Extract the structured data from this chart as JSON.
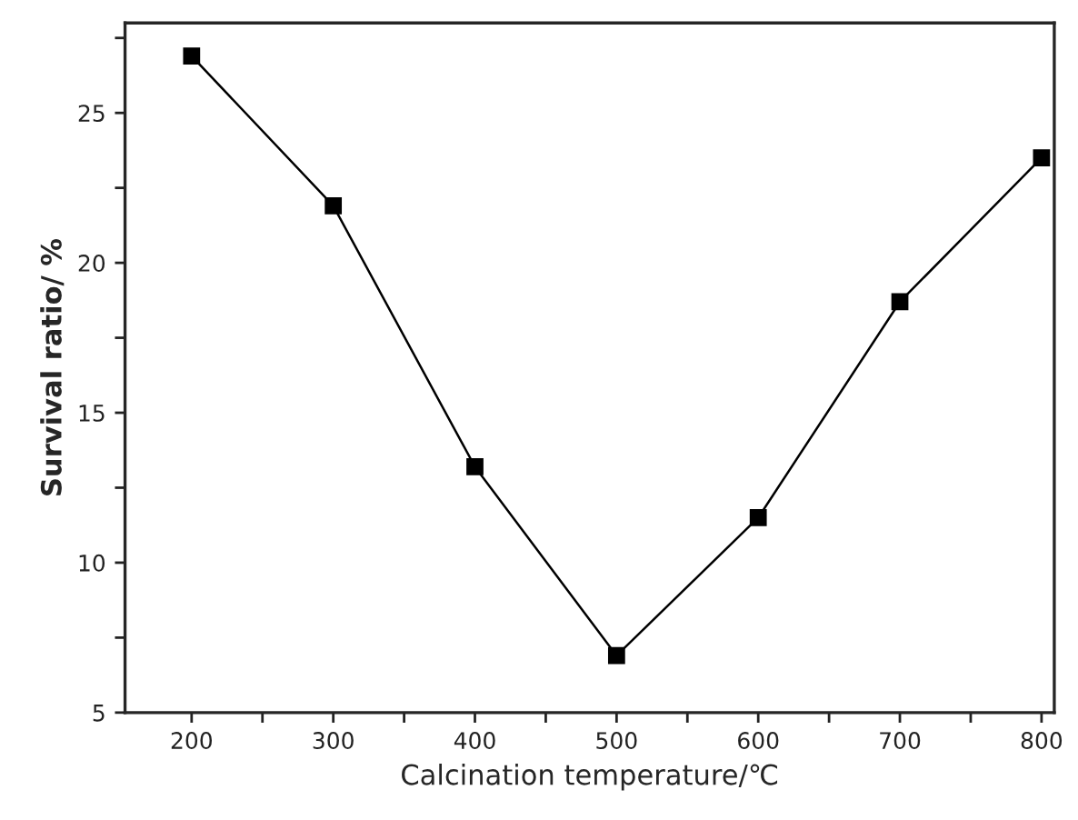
{
  "chart_data": {
    "type": "line",
    "xlabel": "Calcination temperature/℃",
    "ylabel": "Survival ratio/ %",
    "x": [
      200,
      300,
      400,
      500,
      600,
      700,
      800
    ],
    "series": [
      {
        "color": "#000000",
        "values": [
          26.9,
          21.9,
          13.2,
          6.9,
          11.5,
          18.7,
          23.5
        ]
      }
    ],
    "xlim": [
      153,
      809
    ],
    "ylim": [
      5,
      28
    ],
    "xticks": [
      200,
      {
        "value": 250,
        "label": null
      },
      300,
      {
        "value": 350,
        "label": null
      },
      400,
      {
        "value": 450,
        "label": null
      },
      500,
      {
        "value": 550,
        "label": null
      },
      600,
      {
        "value": 650,
        "label": null
      },
      700,
      {
        "value": 750,
        "label": null
      },
      800
    ],
    "yticks": [
      5,
      {
        "value": 7.5,
        "label": null
      },
      10,
      {
        "value": 12.5,
        "label": null
      },
      15,
      {
        "value": 17.5,
        "label": null
      },
      20,
      {
        "value": 22.5,
        "label": null
      },
      25,
      {
        "value": 27.5,
        "label": null
      }
    ],
    "marker": "square",
    "line_style": "solid"
  }
}
